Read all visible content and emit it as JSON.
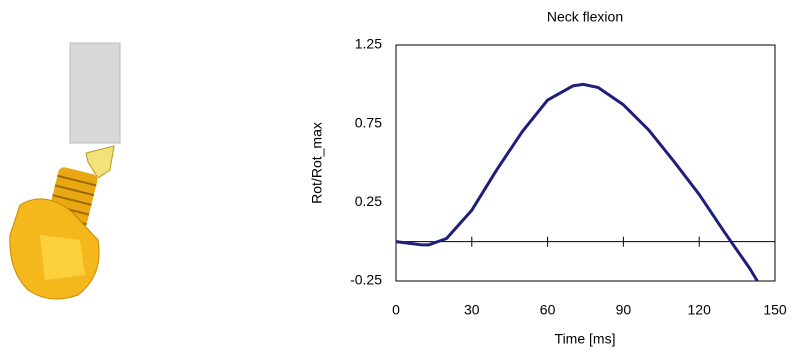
{
  "chart_data": {
    "type": "line",
    "title": "Neck flexion",
    "x_label": "Time [ms]",
    "y_label": "Rot/Rot_max",
    "x": [
      0,
      5,
      10,
      13,
      20,
      30,
      40,
      50,
      60,
      70,
      74,
      80,
      90,
      100,
      110,
      120,
      130,
      140,
      143
    ],
    "series": [
      {
        "color": "#1f1f7a",
        "values": [
          0,
          -0.01,
          -0.02,
          -0.02,
          0.02,
          0.2,
          0.46,
          0.7,
          0.9,
          0.99,
          1.0,
          0.98,
          0.87,
          0.71,
          0.51,
          0.3,
          0.06,
          -0.17,
          -0.25
        ]
      }
    ],
    "xlim": [
      0,
      150
    ],
    "xticks": [
      0,
      30,
      60,
      90,
      120,
      150
    ],
    "ylim": [
      -0.25,
      1.25
    ],
    "yticks": [
      -0.25,
      0.25,
      0.75,
      1.25
    ],
    "grid": false
  }
}
